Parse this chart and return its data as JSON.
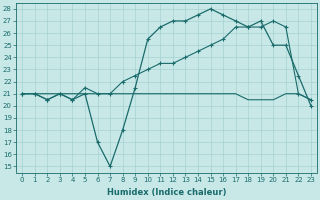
{
  "xlabel": "Humidex (Indice chaleur)",
  "xlim": [
    -0.5,
    23.5
  ],
  "ylim": [
    14.5,
    28.5
  ],
  "yticks": [
    15,
    16,
    17,
    18,
    19,
    20,
    21,
    22,
    23,
    24,
    25,
    26,
    27,
    28
  ],
  "xticks": [
    0,
    1,
    2,
    3,
    4,
    5,
    6,
    7,
    8,
    9,
    10,
    11,
    12,
    13,
    14,
    15,
    16,
    17,
    18,
    19,
    20,
    21,
    22,
    23
  ],
  "background_color": "#c8e8e8",
  "line_color": "#1a6b6b",
  "line1_x": [
    0,
    1,
    2,
    3,
    4,
    5,
    6,
    7,
    8,
    9,
    10,
    11,
    12,
    13,
    14,
    15,
    16,
    17,
    18,
    19,
    20,
    21,
    22,
    23
  ],
  "line1_y": [
    21.0,
    21.0,
    20.5,
    21.0,
    20.5,
    21.0,
    17.0,
    15.0,
    18.0,
    21.5,
    25.5,
    26.5,
    27.0,
    27.0,
    27.5,
    28.0,
    27.5,
    27.0,
    26.5,
    27.0,
    25.0,
    25.0,
    22.5,
    20.0
  ],
  "line2_x": [
    0,
    1,
    2,
    3,
    4,
    5,
    6,
    7,
    8,
    9,
    10,
    11,
    12,
    13,
    14,
    15,
    16,
    17,
    18,
    19,
    20,
    21,
    22,
    23
  ],
  "line2_y": [
    21.0,
    21.0,
    21.0,
    21.0,
    21.0,
    21.0,
    21.0,
    21.0,
    21.0,
    21.0,
    21.0,
    21.0,
    21.0,
    21.0,
    21.0,
    21.0,
    21.0,
    21.0,
    20.5,
    20.5,
    20.5,
    21.0,
    21.0,
    20.5
  ],
  "line3_x": [
    0,
    1,
    2,
    3,
    4,
    5,
    6,
    7,
    8,
    9,
    10,
    11,
    12,
    13,
    14,
    15,
    16,
    17,
    18,
    19,
    20,
    21,
    22,
    23
  ],
  "line3_y": [
    21.0,
    21.0,
    20.5,
    21.0,
    20.5,
    21.5,
    21.0,
    21.0,
    22.0,
    22.5,
    23.0,
    23.5,
    23.5,
    24.0,
    24.5,
    25.0,
    25.5,
    26.5,
    26.5,
    26.5,
    27.0,
    26.5,
    21.0,
    20.5
  ]
}
